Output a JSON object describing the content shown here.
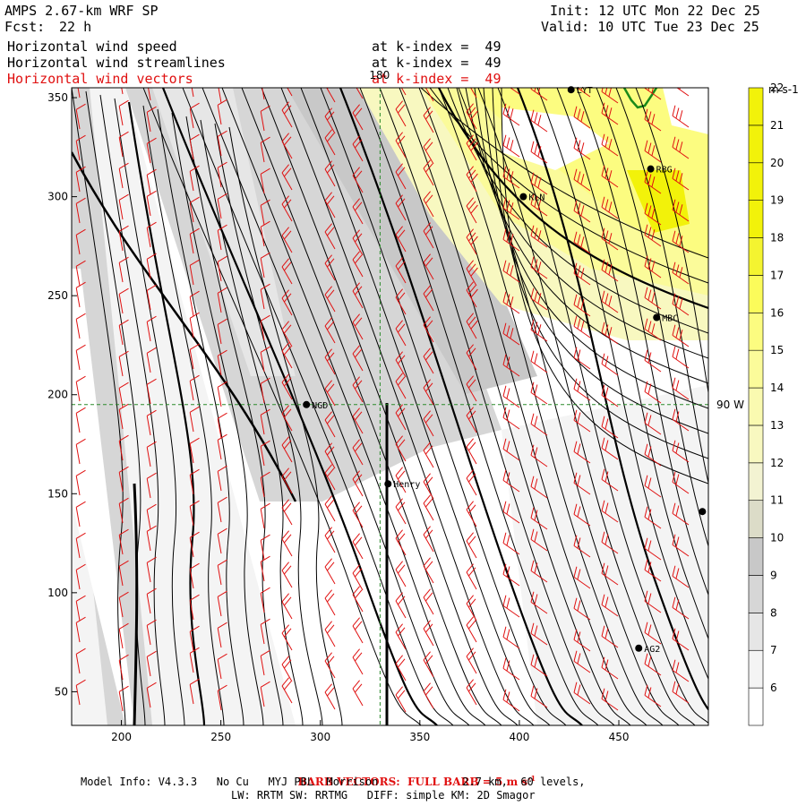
{
  "header": {
    "model": "AMPS 2.67-km WRF SP",
    "fcst_label": "Fcst:",
    "fcst_value": "22 h",
    "init": "Init: 12 UTC Mon 22 Dec 25",
    "valid": "Valid: 10 UTC Tue 23 Dec 25",
    "fields": [
      {
        "name": "Horizontal wind speed",
        "level": "at k-index =  49"
      },
      {
        "name": "Horizontal wind streamlines",
        "level": "at k-index =  49"
      },
      {
        "name": "Horizontal wind vectors",
        "level": "at k-index =  49"
      }
    ]
  },
  "chart_data": {
    "type": "contour-map",
    "title": "Horizontal wind speed, streamlines and vectors at k-index 49",
    "x_ticks": [
      200,
      250,
      300,
      350,
      400,
      450
    ],
    "y_ticks": [
      50,
      100,
      150,
      200,
      250,
      300,
      350
    ],
    "xlim": [
      175,
      495
    ],
    "ylim": [
      33,
      355
    ],
    "colorbar": {
      "units": "m s-1",
      "levels": [
        6,
        7,
        8,
        9,
        10,
        11,
        12,
        13,
        14,
        15,
        16,
        17,
        18,
        19,
        20,
        21,
        22
      ],
      "colors": [
        "#ffffff",
        "#f4f4f4",
        "#e6e6e6",
        "#d6d6d6",
        "#c8c8c8",
        "#dcdcc8",
        "#f3f3d2",
        "#f8f8c0",
        "#fafab0",
        "#fbfb9a",
        "#fcfc80",
        "#fbfb5a",
        "#f4f430",
        "#f2f20a",
        "#f2f20a",
        "#f2f20a",
        "#f2f20a"
      ]
    },
    "reference_lines": [
      {
        "label": "180",
        "axis": "x",
        "value": 330
      },
      {
        "label": "90 W",
        "axis": "y",
        "value": 195
      }
    ],
    "stations": [
      {
        "name": "LYT",
        "x": 426,
        "y": 354
      },
      {
        "name": "RBG",
        "x": 466,
        "y": 314
      },
      {
        "name": "KLN",
        "x": 402,
        "y": 300
      },
      {
        "name": "MBC",
        "x": 469,
        "y": 239
      },
      {
        "name": "NGD",
        "x": 293,
        "y": 195
      },
      {
        "name": "Henry",
        "x": 334,
        "y": 155
      },
      {
        "name": "",
        "x": 492,
        "y": 141
      },
      {
        "name": "AG2",
        "x": 460,
        "y": 72
      }
    ]
  },
  "footer": {
    "barb_note": "BARB VECTORS:  FULL BARB = 5 m s",
    "barb_exp": "-1",
    "model_info": "Model Info: V4.3.3   No Cu   MYJ PBL  Morrison             2.7 km,  60 levels,",
    "physics": "LW: RRTM SW: RRTMG   DIFF: simple KM: 2D Smagor"
  },
  "colors": {
    "barb": "#e01010",
    "coast": "#1a8a1a",
    "guide": "#2a8a2a"
  }
}
